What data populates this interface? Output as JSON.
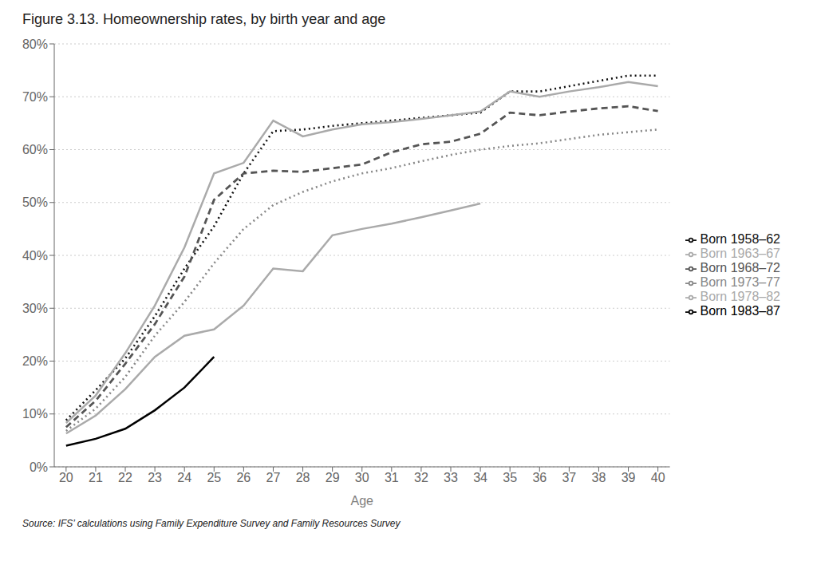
{
  "chart_data": {
    "type": "line",
    "title": "Figure 3.13. Homeownership rates, by birth year and age",
    "x_label": "Age",
    "annotations": [
      "Source: IFS’ calculations using Family Expenditure Survey and Family Resources Survey"
    ],
    "x": [
      20,
      21,
      22,
      23,
      24,
      25,
      26,
      27,
      28,
      29,
      30,
      31,
      32,
      33,
      34,
      35,
      36,
      37,
      38,
      39,
      40
    ],
    "xlim": [
      19.6,
      40.4
    ],
    "xticks": [
      20,
      21,
      22,
      23,
      24,
      25,
      26,
      27,
      28,
      29,
      30,
      31,
      32,
      33,
      34,
      35,
      36,
      37,
      38,
      39,
      40
    ],
    "ylim": [
      0,
      0.8
    ],
    "yticks": [
      {
        "value": 0.0,
        "label": "0%"
      },
      {
        "value": 0.1,
        "label": "10%"
      },
      {
        "value": 0.2,
        "label": "20%"
      },
      {
        "value": 0.3,
        "label": "30%"
      },
      {
        "value": 0.4,
        "label": "40%"
      },
      {
        "value": 0.5,
        "label": "50%"
      },
      {
        "value": 0.6,
        "label": "60%"
      },
      {
        "value": 0.7,
        "label": "70%"
      },
      {
        "value": 0.8,
        "label": "80%"
      }
    ],
    "grid": "y",
    "legend": "right",
    "series": [
      {
        "name": "Born 1958–62",
        "color": "#111111",
        "line_style": "dotted",
        "values": [
          0.088,
          0.145,
          0.205,
          0.285,
          0.375,
          0.455,
          0.555,
          0.635,
          0.638,
          0.645,
          0.65,
          0.655,
          0.66,
          0.665,
          0.67,
          0.71,
          0.71,
          0.72,
          0.73,
          0.74,
          0.74
        ]
      },
      {
        "name": "Born 1963–67",
        "color": "#aaaaaa",
        "line_style": "solid",
        "values": [
          0.083,
          0.135,
          0.215,
          0.305,
          0.415,
          0.555,
          0.575,
          0.655,
          0.625,
          0.638,
          0.648,
          0.652,
          0.658,
          0.665,
          0.672,
          0.71,
          0.7,
          0.71,
          0.718,
          0.728,
          0.72
        ]
      },
      {
        "name": "Born 1968–72",
        "color": "#555555",
        "line_style": "dashed",
        "values": [
          0.075,
          0.125,
          0.195,
          0.27,
          0.36,
          0.505,
          0.555,
          0.56,
          0.558,
          0.565,
          0.572,
          0.595,
          0.61,
          0.615,
          0.63,
          0.67,
          0.665,
          0.672,
          0.678,
          0.682,
          0.673
        ]
      },
      {
        "name": "Born 1973–77",
        "color": "#888888",
        "line_style": "dotted",
        "values": [
          0.068,
          0.11,
          0.17,
          0.248,
          0.312,
          0.385,
          0.45,
          0.495,
          0.52,
          0.54,
          0.555,
          0.565,
          0.578,
          0.59,
          0.6,
          0.607,
          0.612,
          0.62,
          0.628,
          0.633,
          0.638
        ]
      },
      {
        "name": "Born 1978–82",
        "color": "#aaaaaa",
        "line_style": "solid",
        "values": [
          0.063,
          0.097,
          0.147,
          0.208,
          0.248,
          0.26,
          0.305,
          0.375,
          0.37,
          0.438,
          0.45,
          0.46,
          0.472,
          0.485,
          0.498,
          null,
          null,
          null,
          null,
          null,
          null
        ]
      },
      {
        "name": "Born 1983–87",
        "color": "#000000",
        "line_style": "solid",
        "values": [
          0.04,
          0.053,
          0.072,
          0.107,
          0.15,
          0.208,
          null,
          null,
          null,
          null,
          null,
          null,
          null,
          null,
          null,
          null,
          null,
          null,
          null,
          null,
          null
        ]
      }
    ]
  }
}
